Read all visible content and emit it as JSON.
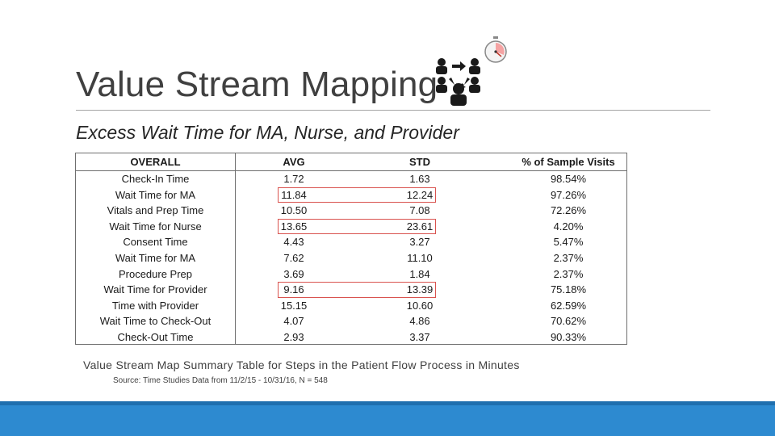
{
  "slide": {
    "title": "Value Stream Mapping",
    "subtitle": "Excess Wait Time for MA, Nurse, and Provider",
    "caption": "Value Stream Map Summary Table for Steps in the Patient Flow Process in Minutes",
    "source": "Source: Time Studies Data from 11/2/15 - 10/31/16, N = 548",
    "icons": [
      "people-workflow-icon",
      "stopwatch-icon"
    ]
  },
  "table": {
    "headers": {
      "step": "OVERALL",
      "avg": "AVG",
      "std": "STD",
      "pct": "% of Sample Visits"
    },
    "rows": [
      {
        "step": "Check-In Time",
        "avg": "1.72",
        "std": "1.63",
        "pct": "98.54%"
      },
      {
        "step": "Wait Time for MA",
        "avg": "11.84",
        "std": "12.24",
        "pct": "97.26%"
      },
      {
        "step": "Vitals and Prep Time",
        "avg": "10.50",
        "std": "7.08",
        "pct": "72.26%"
      },
      {
        "step": "Wait Time for Nurse",
        "avg": "13.65",
        "std": "23.61",
        "pct": "4.20%"
      },
      {
        "step": "Consent Time",
        "avg": "4.43",
        "std": "3.27",
        "pct": "5.47%"
      },
      {
        "step": "Wait Time for MA",
        "avg": "7.62",
        "std": "11.10",
        "pct": "2.37%"
      },
      {
        "step": "Procedure Prep",
        "avg": "3.69",
        "std": "1.84",
        "pct": "2.37%"
      },
      {
        "step": "Wait Time for Provider",
        "avg": "9.16",
        "std": "13.39",
        "pct": "75.18%"
      },
      {
        "step": "Time with Provider",
        "avg": "15.15",
        "std": "10.60",
        "pct": "62.59%"
      },
      {
        "step": "Wait Time to Check-Out",
        "avg": "4.07",
        "std": "4.86",
        "pct": "70.62%"
      },
      {
        "step": "Check-Out Time",
        "avg": "2.93",
        "std": "3.37",
        "pct": "90.33%"
      }
    ],
    "highlighted_rows": [
      1,
      3,
      7
    ],
    "highlight_color": "#d9534f"
  },
  "colors": {
    "footer": "#2d8ad0",
    "title": "#404040"
  }
}
